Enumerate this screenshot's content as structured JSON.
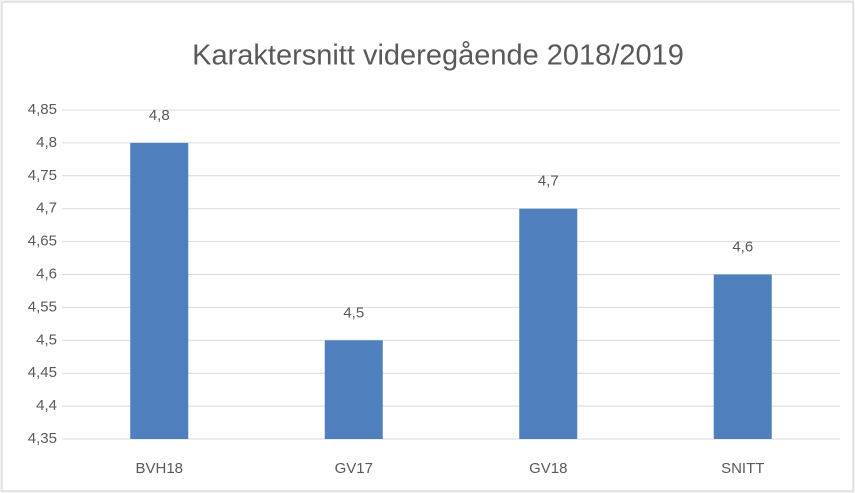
{
  "chart_data": {
    "type": "bar",
    "title": "Karaktersnitt videregående 2018/2019",
    "categories": [
      "BVH18",
      "GV17",
      "GV18",
      "SNITT"
    ],
    "values": [
      4.8,
      4.5,
      4.7,
      4.6
    ],
    "value_labels": [
      "4,8",
      "4,5",
      "4,7",
      "4,6"
    ],
    "color": "#4f7fbd",
    "ylim": [
      4.35,
      4.85
    ],
    "yticks": [
      {
        "value": 4.35,
        "label": "4,35"
      },
      {
        "value": 4.4,
        "label": "4,4"
      },
      {
        "value": 4.45,
        "label": "4,45"
      },
      {
        "value": 4.5,
        "label": "4,5"
      },
      {
        "value": 4.55,
        "label": "4,55"
      },
      {
        "value": 4.6,
        "label": "4,6"
      },
      {
        "value": 4.65,
        "label": "4,65"
      },
      {
        "value": 4.7,
        "label": "4,7"
      },
      {
        "value": 4.75,
        "label": "4,75"
      },
      {
        "value": 4.8,
        "label": "4,8"
      },
      {
        "value": 4.85,
        "label": "4,85"
      }
    ],
    "grid": true
  }
}
